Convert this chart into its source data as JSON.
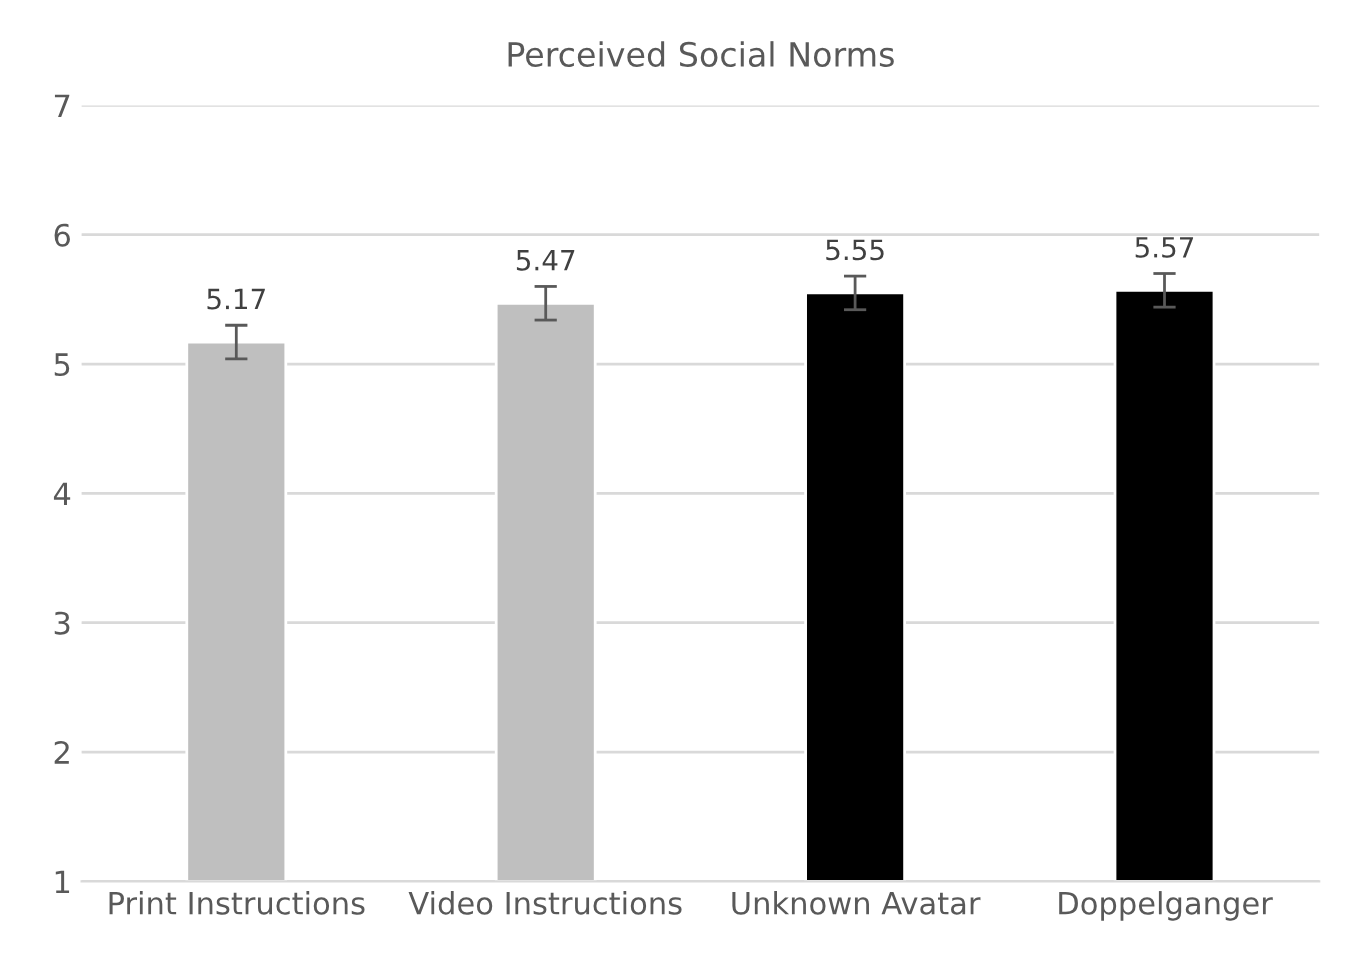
{
  "chart_data": {
    "type": "bar",
    "title": "Perceived Social Norms",
    "categories": [
      "Print Instructions",
      "Video Instructions",
      "Unknown Avatar",
      "Doppelganger"
    ],
    "values": [
      5.17,
      5.47,
      5.55,
      5.57
    ],
    "colors": [
      "#bfbfbf",
      "#bfbfbf",
      "#000000",
      "#000000"
    ],
    "errors": [
      0.13,
      0.13,
      0.13,
      0.13
    ],
    "ylim": [
      1,
      7
    ],
    "yticks": [
      1,
      2,
      3,
      4,
      5,
      6,
      7
    ],
    "grid": "y",
    "data_labels": true
  }
}
